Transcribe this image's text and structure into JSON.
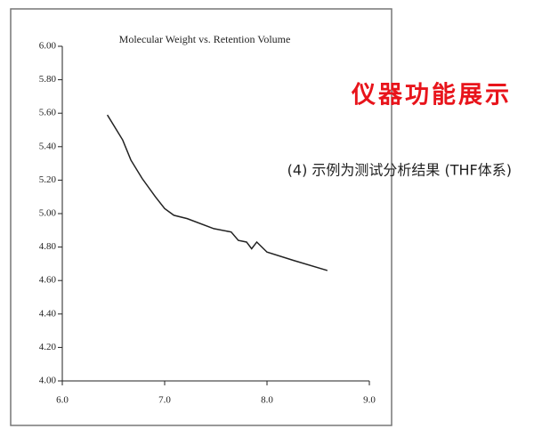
{
  "chart_data": {
    "type": "line",
    "title": "Molecular Weight vs. Retention Volume",
    "annotations": [
      "仪器功能展示",
      "(4) 示例为测试分析结果 (THF体系)"
    ],
    "x": [
      6.44,
      6.59,
      6.67,
      6.78,
      6.91,
      7.0,
      7.09,
      7.22,
      7.48,
      7.65,
      7.72,
      7.8,
      7.85,
      7.9,
      8.0,
      8.26,
      8.59
    ],
    "series": [
      {
        "color": "#222222",
        "values": [
          5.59,
          5.44,
          5.32,
          5.21,
          5.1,
          5.03,
          4.99,
          4.97,
          4.91,
          4.89,
          4.84,
          4.83,
          4.79,
          4.83,
          4.77,
          4.72,
          4.66
        ]
      }
    ],
    "xlim": [
      6,
      9
    ],
    "xticks": [
      {
        "value": 6,
        "label": "6.0"
      },
      {
        "value": 7,
        "label": "7.0"
      },
      {
        "value": 8,
        "label": "8.0"
      },
      {
        "value": 9,
        "label": "9.0"
      }
    ],
    "ylim": [
      4,
      6
    ],
    "yticks": [
      {
        "value": 4,
        "label": "4.00"
      },
      {
        "value": 4.2,
        "label": "4.20"
      },
      {
        "value": 4.4,
        "label": "4.40"
      },
      {
        "value": 4.6,
        "label": "4.60"
      },
      {
        "value": 4.8,
        "label": "4.80"
      },
      {
        "value": 5,
        "label": "5.00"
      },
      {
        "value": 5.2,
        "label": "5.20"
      },
      {
        "value": 5.4,
        "label": "5.40"
      },
      {
        "value": 5.6,
        "label": "5.60"
      },
      {
        "value": 5.8,
        "label": "5.80"
      },
      {
        "value": 6,
        "label": "6.00"
      }
    ],
    "grid": false
  }
}
